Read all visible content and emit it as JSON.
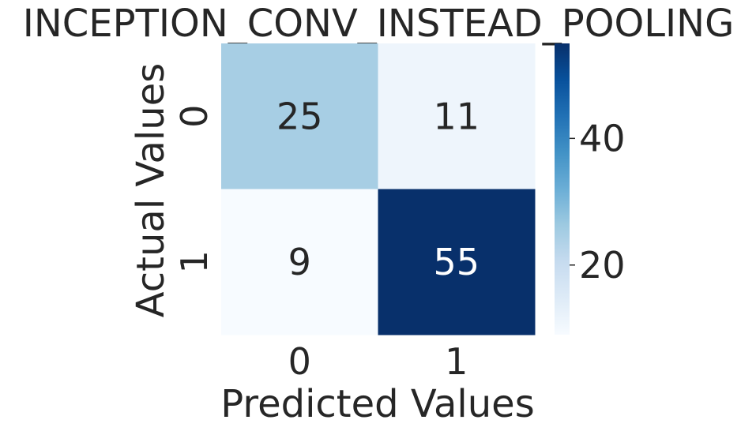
{
  "chart_data": {
    "type": "heatmap",
    "title": "INCEPTION_CONV_INSTEAD_POOLING",
    "xlabel": "Predicted Values",
    "ylabel": "Actual Values",
    "x_categories": [
      "0",
      "1"
    ],
    "y_categories": [
      "0",
      "1"
    ],
    "values": [
      [
        25,
        11
      ],
      [
        9,
        55
      ]
    ],
    "colormap": "Blues",
    "colorbar": {
      "range": [
        9,
        55
      ],
      "ticks": [
        20,
        40
      ],
      "tick_labels": [
        "20",
        "40"
      ]
    },
    "colors": {
      "low": "#f7fbff",
      "high": "#08306b",
      "text_dark": "#262626",
      "text_light": "#ffffff"
    }
  }
}
